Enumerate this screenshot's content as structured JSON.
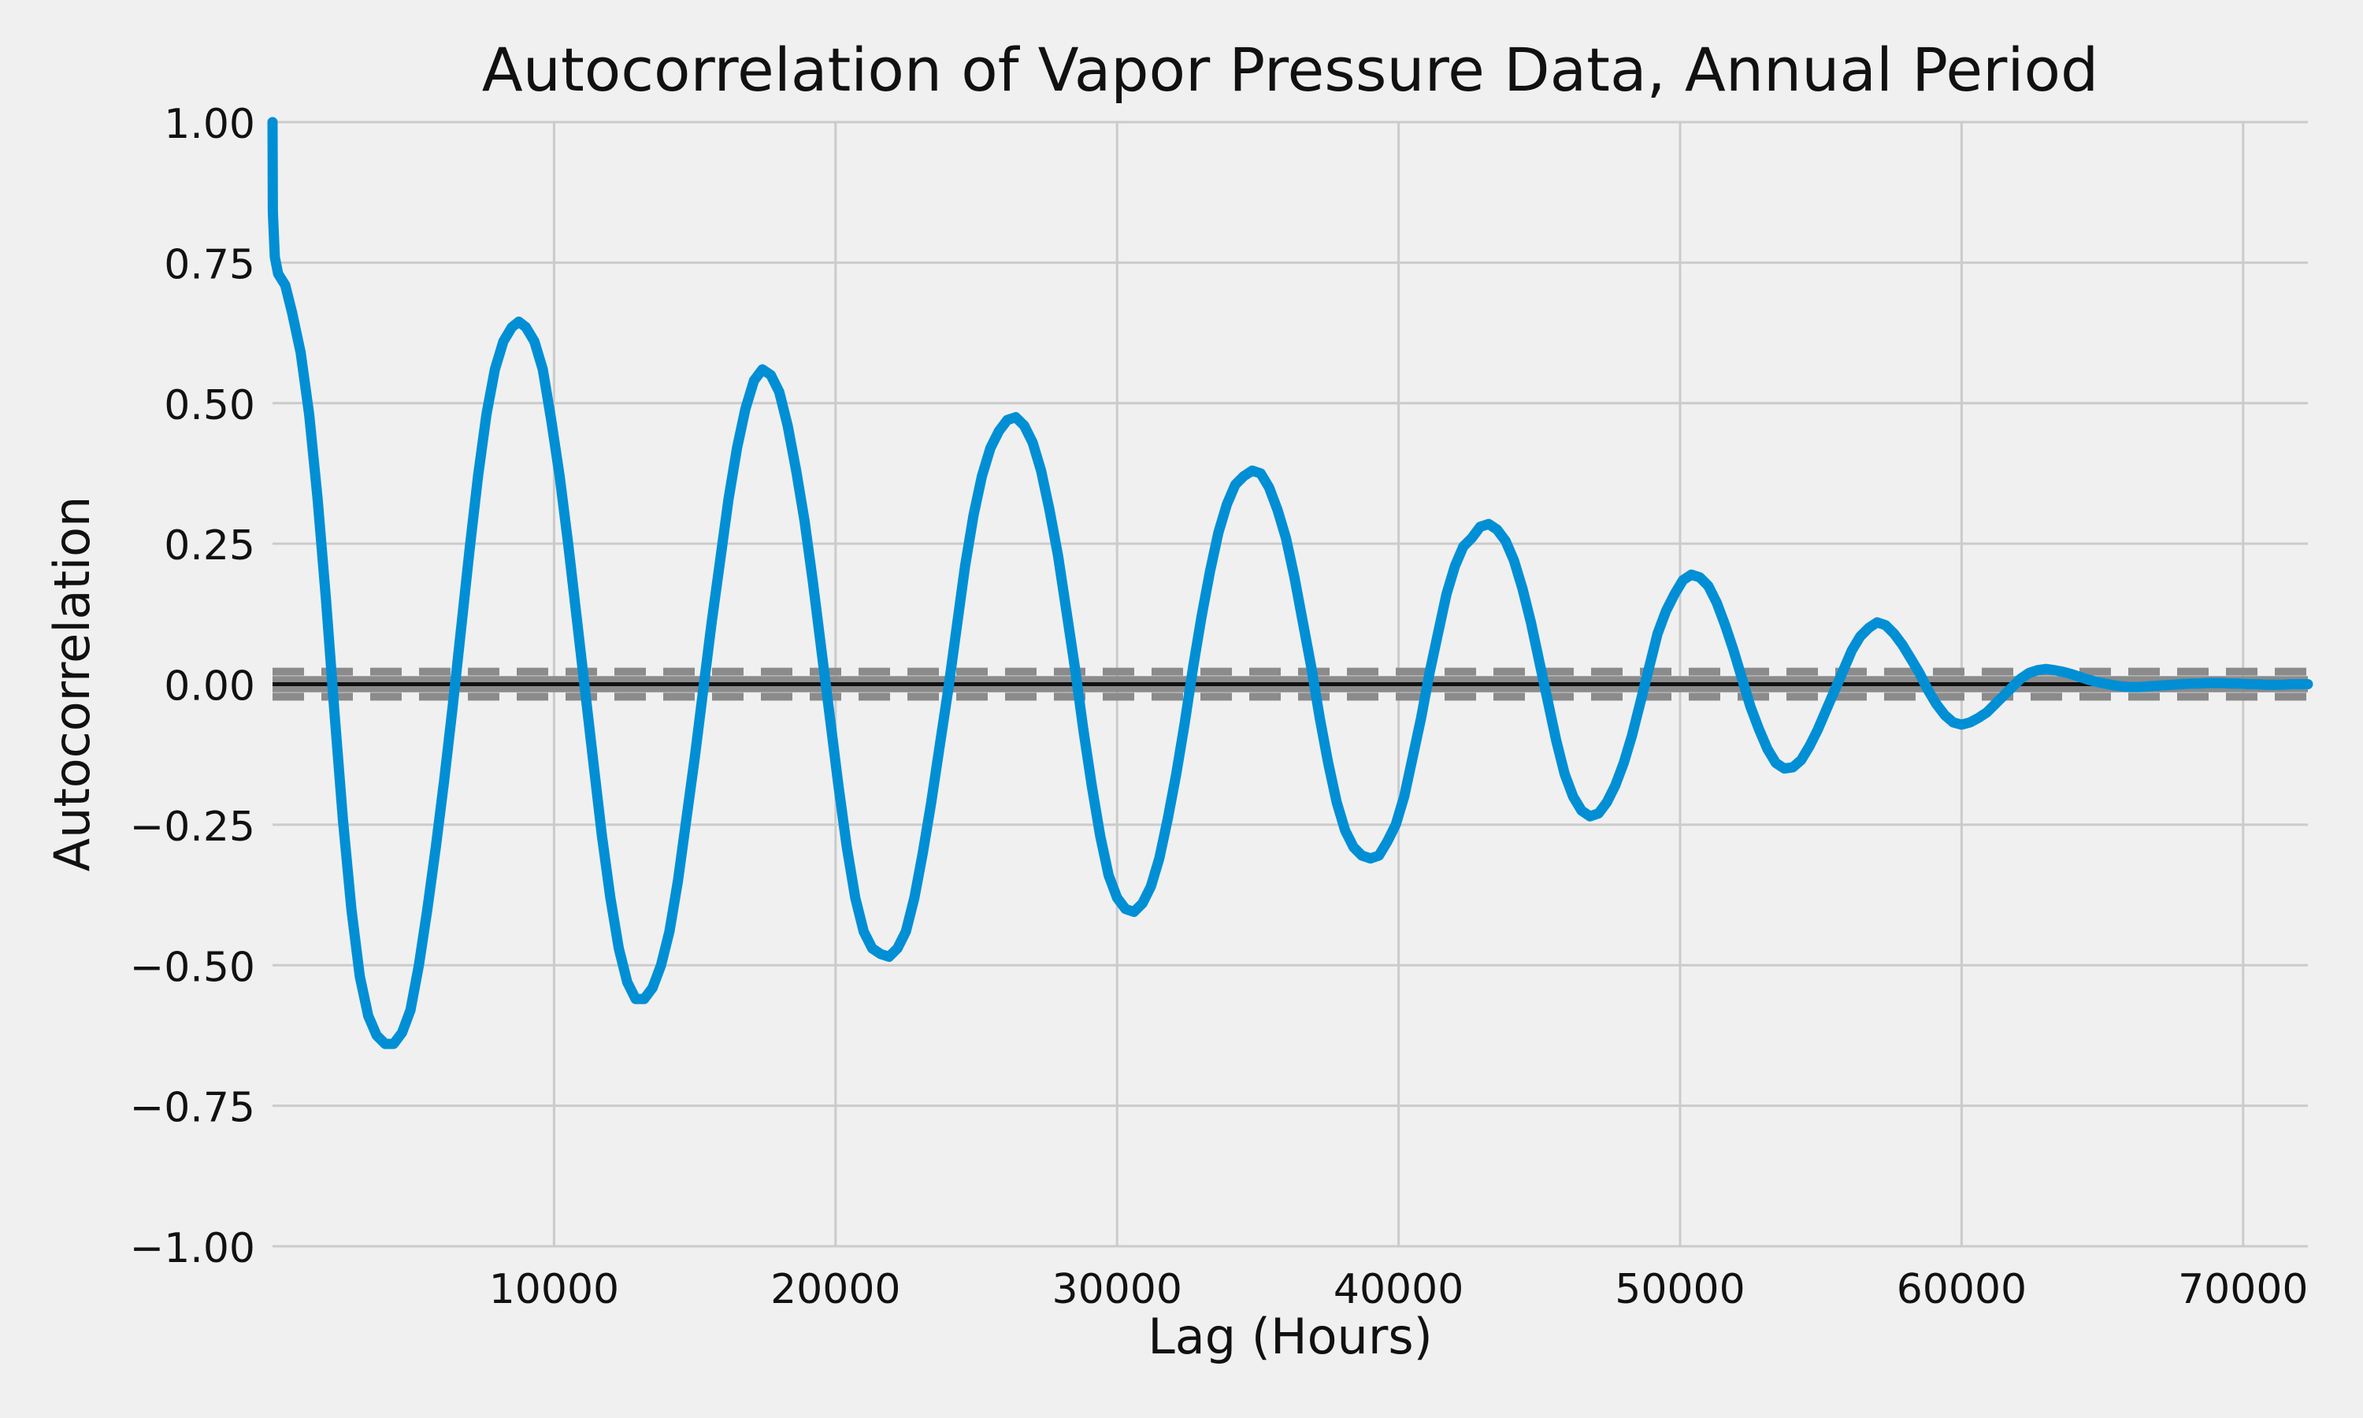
{
  "chart_data": {
    "type": "line",
    "title": "Autocorrelation of Vapor Pressure Data, Annual Period",
    "xlabel": "Lag (Hours)",
    "ylabel": "Autocorrelation",
    "xlim": [
      0,
      72300
    ],
    "ylim": [
      -1.0,
      1.0
    ],
    "x_ticks": [
      10000,
      20000,
      30000,
      40000,
      50000,
      60000,
      70000
    ],
    "x_tick_labels": [
      "10000",
      "20000",
      "30000",
      "40000",
      "50000",
      "60000",
      "70000"
    ],
    "y_ticks": [
      1.0,
      0.75,
      0.5,
      0.25,
      0.0,
      -0.25,
      -0.5,
      -0.75,
      -1.0
    ],
    "y_tick_labels": [
      "1.00",
      "0.75",
      "0.50",
      "0.25",
      "0.00",
      "−0.25",
      "−0.50",
      "−0.75",
      "−1.00"
    ],
    "grid": true,
    "confidence_band": {
      "inner": 0.0073,
      "outer": 0.0223
    },
    "zero_line": 0.0,
    "series": [
      {
        "color": "#008fd5",
        "points": [
          [
            0,
            1.0
          ],
          [
            10,
            0.84
          ],
          [
            80,
            0.76
          ],
          [
            200,
            0.73
          ],
          [
            450,
            0.71
          ],
          [
            700,
            0.66
          ],
          [
            1000,
            0.59
          ],
          [
            1300,
            0.48
          ],
          [
            1600,
            0.33
          ],
          [
            1900,
            0.15
          ],
          [
            2200,
            -0.05
          ],
          [
            2500,
            -0.24
          ],
          [
            2800,
            -0.4
          ],
          [
            3100,
            -0.52
          ],
          [
            3400,
            -0.59
          ],
          [
            3700,
            -0.625
          ],
          [
            4000,
            -0.64
          ],
          [
            4300,
            -0.64
          ],
          [
            4600,
            -0.62
          ],
          [
            4900,
            -0.58
          ],
          [
            5200,
            -0.5
          ],
          [
            5500,
            -0.4
          ],
          [
            5800,
            -0.29
          ],
          [
            6100,
            -0.17
          ],
          [
            6400,
            -0.04
          ],
          [
            6700,
            0.1
          ],
          [
            7000,
            0.24
          ],
          [
            7300,
            0.37
          ],
          [
            7600,
            0.48
          ],
          [
            7900,
            0.56
          ],
          [
            8200,
            0.61
          ],
          [
            8500,
            0.635
          ],
          [
            8750,
            0.645
          ],
          [
            9000,
            0.635
          ],
          [
            9300,
            0.61
          ],
          [
            9600,
            0.56
          ],
          [
            9900,
            0.47
          ],
          [
            10200,
            0.37
          ],
          [
            10500,
            0.25
          ],
          [
            10800,
            0.12
          ],
          [
            11100,
            -0.01
          ],
          [
            11400,
            -0.14
          ],
          [
            11700,
            -0.27
          ],
          [
            12000,
            -0.38
          ],
          [
            12300,
            -0.47
          ],
          [
            12600,
            -0.53
          ],
          [
            12900,
            -0.56
          ],
          [
            13200,
            -0.56
          ],
          [
            13500,
            -0.54
          ],
          [
            13800,
            -0.5
          ],
          [
            14100,
            -0.44
          ],
          [
            14400,
            -0.35
          ],
          [
            14700,
            -0.24
          ],
          [
            15000,
            -0.13
          ],
          [
            15300,
            -0.01
          ],
          [
            15600,
            0.11
          ],
          [
            15900,
            0.22
          ],
          [
            16200,
            0.33
          ],
          [
            16500,
            0.42
          ],
          [
            16800,
            0.49
          ],
          [
            17100,
            0.54
          ],
          [
            17400,
            0.56
          ],
          [
            17700,
            0.55
          ],
          [
            18000,
            0.52
          ],
          [
            18300,
            0.46
          ],
          [
            18600,
            0.38
          ],
          [
            18900,
            0.29
          ],
          [
            19200,
            0.18
          ],
          [
            19500,
            0.06
          ],
          [
            19800,
            -0.06
          ],
          [
            20100,
            -0.18
          ],
          [
            20400,
            -0.29
          ],
          [
            20700,
            -0.38
          ],
          [
            21000,
            -0.44
          ],
          [
            21300,
            -0.47
          ],
          [
            21600,
            -0.48
          ],
          [
            21900,
            -0.485
          ],
          [
            22200,
            -0.47
          ],
          [
            22500,
            -0.44
          ],
          [
            22800,
            -0.38
          ],
          [
            23100,
            -0.3
          ],
          [
            23400,
            -0.21
          ],
          [
            23700,
            -0.11
          ],
          [
            24000,
            -0.01
          ],
          [
            24300,
            0.1
          ],
          [
            24600,
            0.21
          ],
          [
            24900,
            0.3
          ],
          [
            25200,
            0.37
          ],
          [
            25500,
            0.42
          ],
          [
            25800,
            0.45
          ],
          [
            26100,
            0.47
          ],
          [
            26400,
            0.475
          ],
          [
            26700,
            0.46
          ],
          [
            27000,
            0.43
          ],
          [
            27300,
            0.38
          ],
          [
            27600,
            0.31
          ],
          [
            27900,
            0.23
          ],
          [
            28200,
            0.13
          ],
          [
            28500,
            0.03
          ],
          [
            28800,
            -0.08
          ],
          [
            29100,
            -0.18
          ],
          [
            29400,
            -0.27
          ],
          [
            29700,
            -0.34
          ],
          [
            30000,
            -0.38
          ],
          [
            30300,
            -0.4
          ],
          [
            30600,
            -0.405
          ],
          [
            30900,
            -0.39
          ],
          [
            31200,
            -0.36
          ],
          [
            31500,
            -0.31
          ],
          [
            31800,
            -0.24
          ],
          [
            32100,
            -0.16
          ],
          [
            32400,
            -0.07
          ],
          [
            32700,
            0.03
          ],
          [
            33000,
            0.12
          ],
          [
            33300,
            0.2
          ],
          [
            33600,
            0.27
          ],
          [
            33900,
            0.32
          ],
          [
            34200,
            0.355
          ],
          [
            34500,
            0.37
          ],
          [
            34800,
            0.38
          ],
          [
            35100,
            0.375
          ],
          [
            35400,
            0.35
          ],
          [
            35700,
            0.31
          ],
          [
            36000,
            0.26
          ],
          [
            36300,
            0.19
          ],
          [
            36600,
            0.11
          ],
          [
            36900,
            0.03
          ],
          [
            37200,
            -0.06
          ],
          [
            37500,
            -0.14
          ],
          [
            37800,
            -0.21
          ],
          [
            38100,
            -0.26
          ],
          [
            38400,
            -0.29
          ],
          [
            38700,
            -0.305
          ],
          [
            39000,
            -0.31
          ],
          [
            39300,
            -0.305
          ],
          [
            39600,
            -0.28
          ],
          [
            39900,
            -0.25
          ],
          [
            40200,
            -0.2
          ],
          [
            40500,
            -0.13
          ],
          [
            40800,
            -0.06
          ],
          [
            41100,
            0.02
          ],
          [
            41400,
            0.09
          ],
          [
            41700,
            0.16
          ],
          [
            42000,
            0.21
          ],
          [
            42300,
            0.245
          ],
          [
            42600,
            0.26
          ],
          [
            42900,
            0.28
          ],
          [
            43200,
            0.285
          ],
          [
            43500,
            0.275
          ],
          [
            43800,
            0.255
          ],
          [
            44100,
            0.22
          ],
          [
            44400,
            0.17
          ],
          [
            44700,
            0.11
          ],
          [
            45000,
            0.04
          ],
          [
            45300,
            -0.03
          ],
          [
            45600,
            -0.1
          ],
          [
            45900,
            -0.16
          ],
          [
            46200,
            -0.2
          ],
          [
            46500,
            -0.225
          ],
          [
            46800,
            -0.235
          ],
          [
            47100,
            -0.23
          ],
          [
            47400,
            -0.21
          ],
          [
            47700,
            -0.18
          ],
          [
            48000,
            -0.14
          ],
          [
            48300,
            -0.09
          ],
          [
            48600,
            -0.03
          ],
          [
            48900,
            0.03
          ],
          [
            49200,
            0.09
          ],
          [
            49500,
            0.13
          ],
          [
            49800,
            0.16
          ],
          [
            50100,
            0.185
          ],
          [
            50400,
            0.195
          ],
          [
            50700,
            0.19
          ],
          [
            51000,
            0.175
          ],
          [
            51300,
            0.145
          ],
          [
            51600,
            0.105
          ],
          [
            51900,
            0.06
          ],
          [
            52200,
            0.01
          ],
          [
            52500,
            -0.04
          ],
          [
            52800,
            -0.08
          ],
          [
            53100,
            -0.115
          ],
          [
            53400,
            -0.14
          ],
          [
            53700,
            -0.15
          ],
          [
            54000,
            -0.148
          ],
          [
            54300,
            -0.135
          ],
          [
            54600,
            -0.11
          ],
          [
            54900,
            -0.08
          ],
          [
            55200,
            -0.045
          ],
          [
            55500,
            -0.01
          ],
          [
            55800,
            0.025
          ],
          [
            56100,
            0.06
          ],
          [
            56400,
            0.085
          ],
          [
            56700,
            0.1
          ],
          [
            57000,
            0.11
          ],
          [
            57300,
            0.105
          ],
          [
            57600,
            0.09
          ],
          [
            57900,
            0.07
          ],
          [
            58200,
            0.045
          ],
          [
            58500,
            0.02
          ],
          [
            58800,
            -0.01
          ],
          [
            59100,
            -0.035
          ],
          [
            59400,
            -0.055
          ],
          [
            59700,
            -0.068
          ],
          [
            60000,
            -0.072
          ],
          [
            60300,
            -0.068
          ],
          [
            60600,
            -0.06
          ],
          [
            60900,
            -0.05
          ],
          [
            61200,
            -0.035
          ],
          [
            61500,
            -0.02
          ],
          [
            61800,
            -0.005
          ],
          [
            62100,
            0.01
          ],
          [
            62400,
            0.02
          ],
          [
            62700,
            0.025
          ],
          [
            63000,
            0.027
          ],
          [
            63300,
            0.025
          ],
          [
            63600,
            0.022
          ],
          [
            63900,
            0.018
          ],
          [
            64200,
            0.013
          ],
          [
            64500,
            0.008
          ],
          [
            64800,
            0.004
          ],
          [
            65100,
            0.001
          ],
          [
            65400,
            -0.002
          ],
          [
            65700,
            -0.004
          ],
          [
            66000,
            -0.005
          ],
          [
            66300,
            -0.005
          ],
          [
            66600,
            -0.004
          ],
          [
            66900,
            -0.003
          ],
          [
            67200,
            -0.002
          ],
          [
            67500,
            -0.001
          ],
          [
            67800,
            0.0
          ],
          [
            68100,
            0.001
          ],
          [
            68400,
            0.001
          ],
          [
            68700,
            0.002
          ],
          [
            69000,
            0.002
          ],
          [
            69300,
            0.002
          ],
          [
            69600,
            0.001
          ],
          [
            69900,
            0.001
          ],
          [
            70200,
            0.0
          ],
          [
            70500,
            0.0
          ],
          [
            70800,
            -0.001
          ],
          [
            71100,
            -0.001
          ],
          [
            71400,
            -0.001
          ],
          [
            71700,
            0.0
          ],
          [
            72000,
            0.0
          ],
          [
            72300,
            0.0
          ]
        ]
      }
    ]
  }
}
